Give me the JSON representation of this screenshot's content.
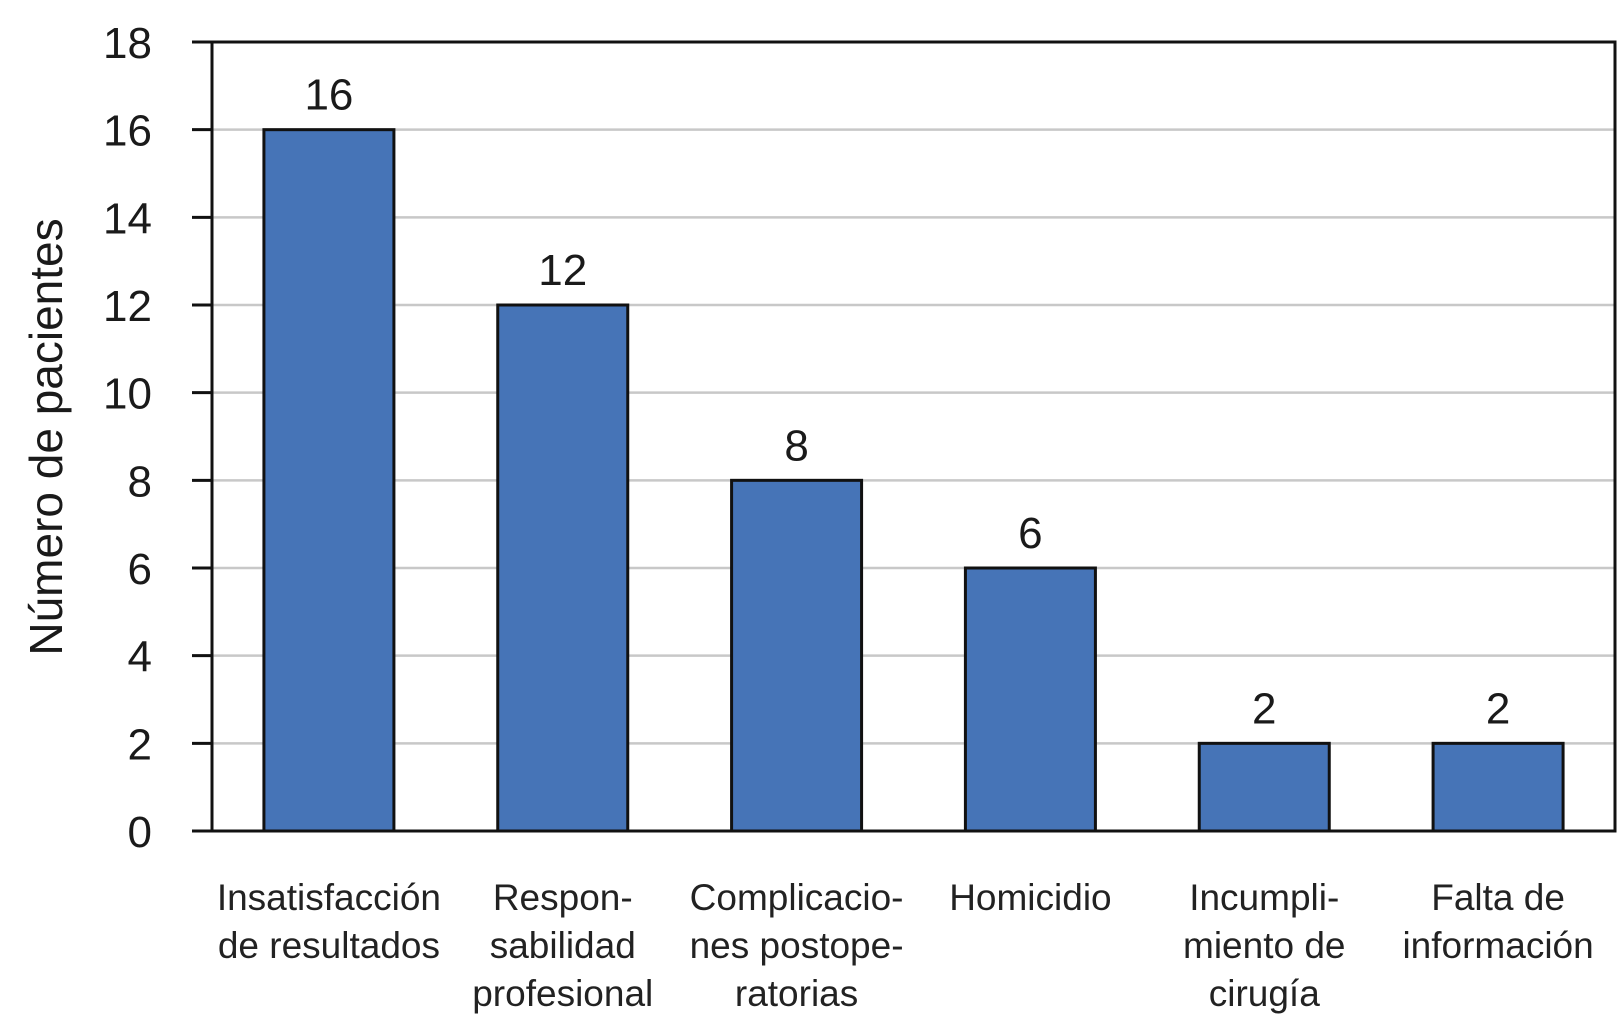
{
  "chart_data": {
    "type": "bar",
    "title": "",
    "xlabel": "",
    "ylabel": "Número de pacientes",
    "ylim": [
      0,
      18
    ],
    "yticks": [
      0,
      2,
      4,
      6,
      8,
      10,
      12,
      14,
      16,
      18
    ],
    "grid": true,
    "legend": "none",
    "categories": [
      [
        "Insatisfacción",
        "de resultados"
      ],
      [
        "Respon-",
        "sabilidad",
        "profesional"
      ],
      [
        "Complicacio-",
        "nes postope-",
        "ratorias"
      ],
      [
        "Homicidio"
      ],
      [
        "Incumpli-",
        "miento de",
        "cirugía"
      ],
      [
        "Falta de",
        "información"
      ]
    ],
    "values": [
      16,
      12,
      8,
      6,
      2,
      2
    ],
    "data_labels": [
      "16",
      "12",
      "8",
      "6",
      "2",
      "2"
    ],
    "colors": {
      "bar": "#4674b7",
      "bar_outline": "#111111",
      "gridline": "#c8c8c8",
      "frame": "#111111"
    }
  }
}
